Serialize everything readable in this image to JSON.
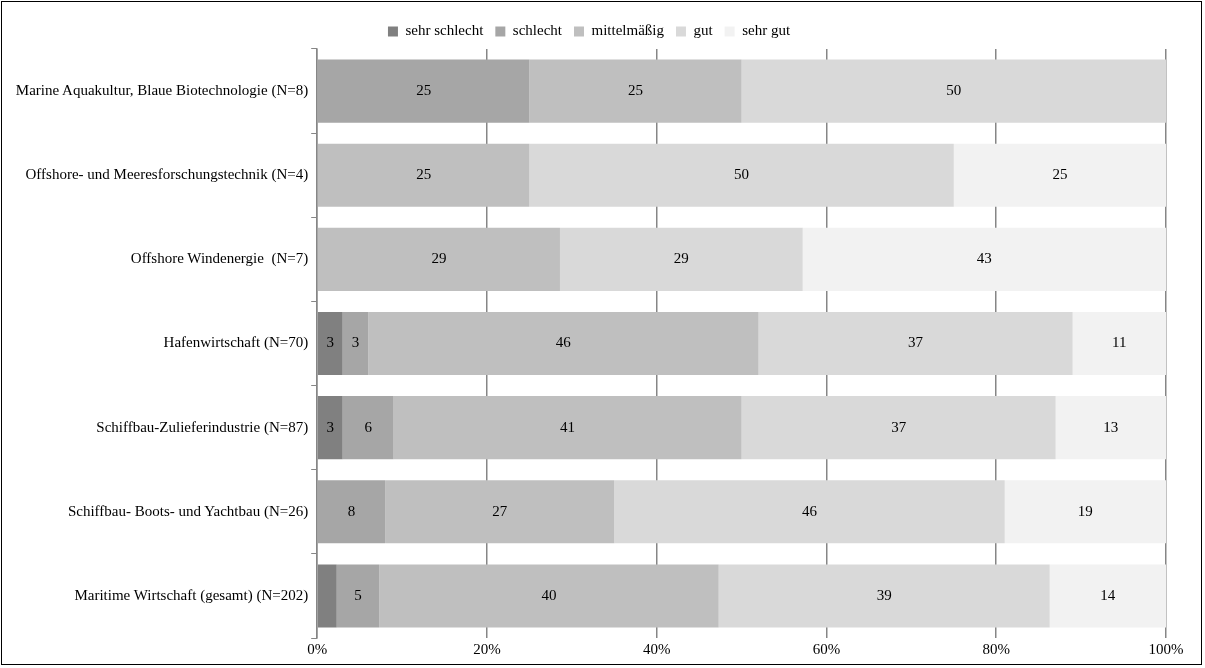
{
  "chart_data": {
    "type": "bar",
    "orientation": "horizontal",
    "stacked": true,
    "categories": [
      "Marine Aquakultur, Blaue Biotechnologie (N=8)",
      "Offshore- und Meeresforschungstechnik (N=4)",
      "Offshore Windenergie  (N=7)",
      "Hafenwirtschaft (N=70)",
      "Schiffbau-Zulieferindustrie (N=87)",
      "Schiffbau- Boots- und Yachtbau (N=26)",
      "Maritime Wirtschaft (gesamt) (N=202)"
    ],
    "series": [
      {
        "name": "sehr schlecht",
        "color": "#808080",
        "values": [
          0,
          0,
          0,
          3,
          3,
          0,
          2.3
        ],
        "value_labels": [
          null,
          null,
          null,
          "3",
          "3",
          null,
          null
        ]
      },
      {
        "name": "schlecht",
        "color": "#a6a6a6",
        "values": [
          25,
          0,
          0,
          3,
          6,
          8,
          5
        ],
        "value_labels": [
          "25",
          null,
          null,
          "3",
          "6",
          "8",
          "5"
        ]
      },
      {
        "name": "mittelmäßig",
        "color": "#bfbfbf",
        "values": [
          25,
          25,
          28.6,
          46,
          41,
          27,
          40
        ],
        "value_labels": [
          "25",
          "25",
          "29",
          "46",
          "41",
          "27",
          "40"
        ]
      },
      {
        "name": "gut",
        "color": "#d9d9d9",
        "values": [
          50,
          50,
          28.6,
          37,
          37,
          46,
          39
        ],
        "value_labels": [
          "50",
          "50",
          "29",
          "37",
          "37",
          "46",
          "39"
        ]
      },
      {
        "name": "sehr gut",
        "color": "#f2f2f2",
        "values": [
          0,
          25,
          42.8,
          11,
          13,
          19,
          13.7
        ],
        "value_labels": [
          null,
          "25",
          "43",
          "11",
          "13",
          "19",
          "14"
        ]
      }
    ],
    "xlim": [
      0,
      100
    ],
    "xticks": [
      {
        "value": 0,
        "label": "0%"
      },
      {
        "value": 20,
        "label": "20%"
      },
      {
        "value": 40,
        "label": "40%"
      },
      {
        "value": 60,
        "label": "60%"
      },
      {
        "value": 80,
        "label": "80%"
      },
      {
        "value": 100,
        "label": "100%"
      }
    ],
    "grid": "x",
    "legend": "top"
  }
}
